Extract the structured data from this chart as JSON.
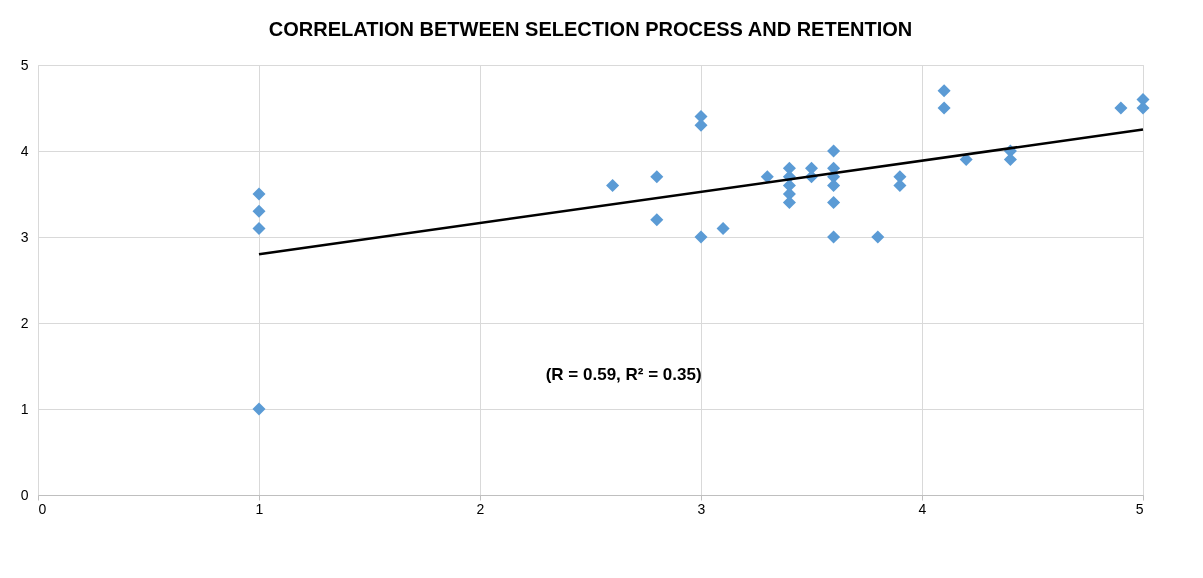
{
  "chart_data": {
    "type": "scatter",
    "title": "CORRELATION BETWEEN SELECTION PROCESS AND RETENTION",
    "series": [
      {
        "color": "#5b9bd5",
        "marker": "diamond",
        "x": [
          1,
          1,
          1,
          1,
          2.6,
          2.8,
          2.8,
          3.0,
          3.0,
          3.0,
          3.1,
          3.3,
          3.4,
          3.4,
          3.4,
          3.4,
          3.4,
          3.5,
          3.5,
          3.6,
          3.6,
          3.6,
          3.6,
          3.6,
          3.6,
          3.8,
          3.9,
          3.9,
          4.1,
          4.1,
          4.2,
          4.4,
          4.4,
          4.9,
          5.0,
          5.0
        ],
        "values": [
          3.5,
          3.3,
          3.1,
          1.0,
          3.6,
          3.7,
          3.2,
          4.4,
          4.3,
          3.0,
          3.1,
          3.7,
          3.8,
          3.7,
          3.6,
          3.5,
          3.4,
          3.8,
          3.7,
          4.0,
          3.8,
          3.7,
          3.6,
          3.4,
          3.0,
          3.0,
          3.7,
          3.6,
          4.7,
          4.5,
          3.9,
          4.0,
          3.9,
          4.5,
          4.6,
          4.5
        ]
      },
      {
        "type": "line",
        "color": "#000000",
        "x": [
          1,
          5
        ],
        "values": [
          2.8,
          4.25
        ]
      }
    ],
    "annotations": [
      "(R = 0.59, R² = 0.35)"
    ],
    "xlim": [
      0,
      5
    ],
    "xticks": [
      0,
      1,
      2,
      3,
      4,
      5
    ],
    "ylim": [
      0,
      5
    ],
    "yticks": [
      0,
      1,
      2,
      3,
      4,
      5
    ],
    "grid": true
  }
}
